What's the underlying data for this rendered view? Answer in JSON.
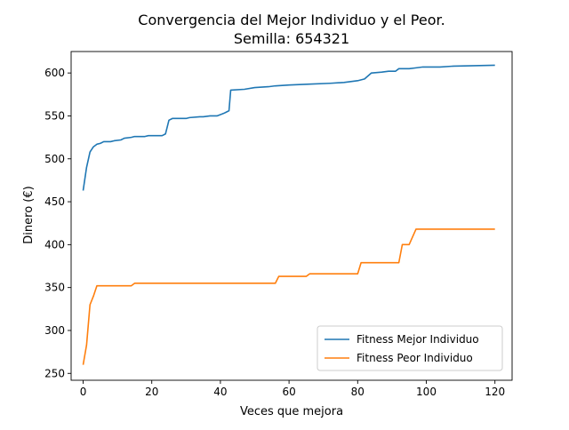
{
  "chart_data": {
    "type": "line",
    "title": "Convergencia del Mejor Individuo y el Peor.",
    "subtitle": "Semilla: 654321",
    "xlabel": "Veces que mejora",
    "ylabel": "Dinero (€)",
    "xlim": [
      -3.5,
      125
    ],
    "ylim": [
      242,
      625
    ],
    "xticks": [
      0,
      20,
      40,
      60,
      80,
      100,
      120
    ],
    "yticks": [
      250,
      300,
      350,
      400,
      450,
      500,
      550,
      600
    ],
    "grid": false,
    "legend_position": "lower-right",
    "series": [
      {
        "name": "Fitness Mejor Individuo",
        "color": "#1f77b4",
        "points": [
          [
            0,
            463
          ],
          [
            1,
            490
          ],
          [
            2,
            508
          ],
          [
            3,
            514
          ],
          [
            4,
            517
          ],
          [
            5,
            518
          ],
          [
            6,
            520
          ],
          [
            8,
            520
          ],
          [
            9,
            521
          ],
          [
            11,
            522
          ],
          [
            12,
            524
          ],
          [
            14,
            525
          ],
          [
            15,
            526
          ],
          [
            18,
            526
          ],
          [
            19,
            527
          ],
          [
            23,
            527
          ],
          [
            24,
            529
          ],
          [
            25,
            545
          ],
          [
            26,
            547
          ],
          [
            30,
            547
          ],
          [
            31,
            548
          ],
          [
            34,
            549
          ],
          [
            35,
            549
          ],
          [
            37,
            550
          ],
          [
            39,
            550
          ],
          [
            41,
            553
          ],
          [
            42,
            555
          ],
          [
            42.5,
            556
          ],
          [
            43,
            580
          ],
          [
            47,
            581
          ],
          [
            50,
            583
          ],
          [
            54,
            584
          ],
          [
            56,
            585
          ],
          [
            60,
            586
          ],
          [
            66,
            587
          ],
          [
            72,
            588
          ],
          [
            76,
            589
          ],
          [
            78,
            590
          ],
          [
            80,
            591
          ],
          [
            82,
            593
          ],
          [
            84,
            600
          ],
          [
            87,
            601
          ],
          [
            89,
            602
          ],
          [
            91,
            602
          ],
          [
            92,
            605
          ],
          [
            95,
            605
          ],
          [
            97,
            606
          ],
          [
            99,
            607
          ],
          [
            104,
            607
          ],
          [
            108,
            608
          ],
          [
            120,
            609
          ]
        ]
      },
      {
        "name": "Fitness Peor Individuo",
        "color": "#ff7f0e",
        "points": [
          [
            0,
            260
          ],
          [
            1,
            283
          ],
          [
            2,
            330
          ],
          [
            3,
            340
          ],
          [
            4,
            352
          ],
          [
            10,
            352
          ],
          [
            14,
            352
          ],
          [
            15,
            355
          ],
          [
            20,
            355
          ],
          [
            56,
            355
          ],
          [
            57,
            363
          ],
          [
            60,
            363
          ],
          [
            65,
            363
          ],
          [
            66,
            366
          ],
          [
            70,
            366
          ],
          [
            80,
            366
          ],
          [
            81,
            379
          ],
          [
            92,
            379
          ],
          [
            93,
            400
          ],
          [
            95,
            400
          ],
          [
            97,
            418
          ],
          [
            120,
            418
          ]
        ]
      }
    ]
  }
}
